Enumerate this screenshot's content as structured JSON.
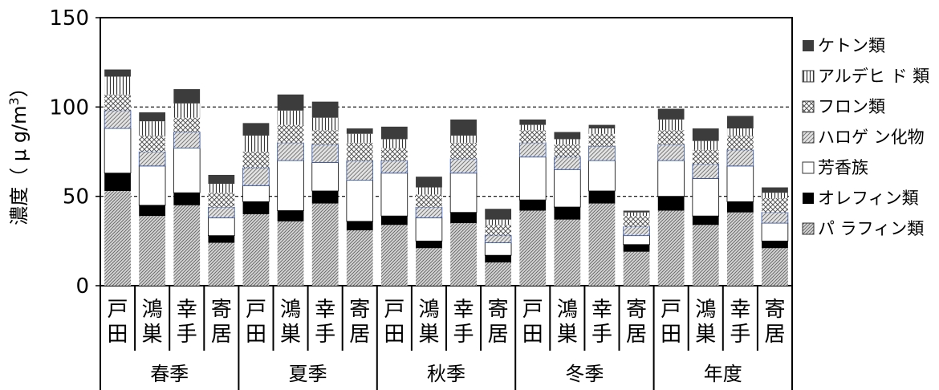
{
  "chart_data": {
    "type": "bar",
    "stacked": true,
    "ylabel": "濃度（μg/m³）",
    "ylabel_parts": {
      "main": "濃度（ μ g/m",
      "sup": "3",
      "close": "）"
    },
    "ylim": [
      0,
      150
    ],
    "yticks": [
      0,
      50,
      100,
      150
    ],
    "ytick_labels": [
      "0",
      "50",
      "100",
      "150"
    ],
    "reference_lines": [
      50,
      100
    ],
    "groups": [
      {
        "label": "春季",
        "sites": [
          "戸田",
          "鴻巣",
          "幸手",
          "寄居"
        ]
      },
      {
        "label": "夏季",
        "sites": [
          "戸田",
          "鴻巣",
          "幸手",
          "寄居"
        ]
      },
      {
        "label": "秋季",
        "sites": [
          "戸田",
          "鴻巣",
          "幸手",
          "寄居"
        ]
      },
      {
        "label": "冬季",
        "sites": [
          "戸田",
          "鴻巣",
          "幸手",
          "寄居"
        ]
      },
      {
        "label": "年度",
        "sites": [
          "戸田",
          "鴻巣",
          "幸手",
          "寄居"
        ]
      }
    ],
    "categories": [
      "春季 戸田",
      "春季 鴻巣",
      "春季 幸手",
      "春季 寄居",
      "夏季 戸田",
      "夏季 鴻巣",
      "夏季 幸手",
      "夏季 寄居",
      "秋季 戸田",
      "秋季 鴻巣",
      "秋季 幸手",
      "秋季 寄居",
      "冬季 戸田",
      "冬季 鴻巣",
      "冬季 幸手",
      "冬季 寄居",
      "年度 戸田",
      "年度 鴻巣",
      "年度 幸手",
      "年度 寄居"
    ],
    "series": [
      {
        "name": "パラフィン類",
        "pattern": "diag-dense",
        "values": [
          53,
          39,
          45,
          24,
          40,
          36,
          46,
          31,
          34,
          21,
          35,
          13,
          42,
          37,
          46,
          19,
          42,
          34,
          41,
          21
        ]
      },
      {
        "name": "オレフィン類",
        "pattern": "solid-black",
        "values": [
          10,
          6,
          7,
          4,
          7,
          6,
          7,
          5,
          5,
          4,
          6,
          4,
          6,
          7,
          7,
          4,
          8,
          5,
          6,
          4
        ]
      },
      {
        "name": "芳香族",
        "pattern": "white",
        "values": [
          25,
          22,
          25,
          10,
          9,
          28,
          16,
          23,
          24,
          13,
          22,
          7,
          24,
          21,
          17,
          5,
          20,
          21,
          20,
          10
        ]
      },
      {
        "name": "ハロゲン化物",
        "pattern": "diag-light",
        "values": [
          10,
          8,
          9,
          6,
          10,
          10,
          10,
          11,
          7,
          6,
          8,
          4,
          8,
          7,
          8,
          5,
          9,
          8,
          9,
          6
        ]
      },
      {
        "name": "フロン類",
        "pattern": "crosshatch",
        "values": [
          9,
          9,
          8,
          8,
          9,
          10,
          8,
          10,
          7,
          7,
          9,
          6,
          7,
          7,
          7,
          6,
          8,
          8,
          8,
          8
        ]
      },
      {
        "name": "アルデヒド類",
        "pattern": "vertical",
        "values": [
          10,
          8,
          8,
          5,
          9,
          8,
          7,
          5,
          5,
          4,
          4,
          3,
          3,
          3,
          3,
          2,
          6,
          5,
          4,
          3
        ]
      },
      {
        "name": "ケトン類",
        "pattern": "solid-dark",
        "values": [
          4,
          5,
          8,
          5,
          7,
          9,
          9,
          3,
          7,
          6,
          9,
          6,
          3,
          4,
          2,
          1,
          6,
          7,
          7,
          3
        ]
      }
    ],
    "legend": {
      "placement": "right",
      "order": [
        "ケトン類",
        "アルデヒド類",
        "フロン類",
        "ハロゲン化物",
        "芳香族",
        "オレフィン類",
        "パラフィン類"
      ],
      "labels": [
        "ケトン類",
        "アルデヒ ド 類",
        "フロン類",
        "ハロゲ ン化物",
        "芳香族",
        "オレフィン類",
        "パ ラフィン類"
      ]
    },
    "grid": false
  }
}
